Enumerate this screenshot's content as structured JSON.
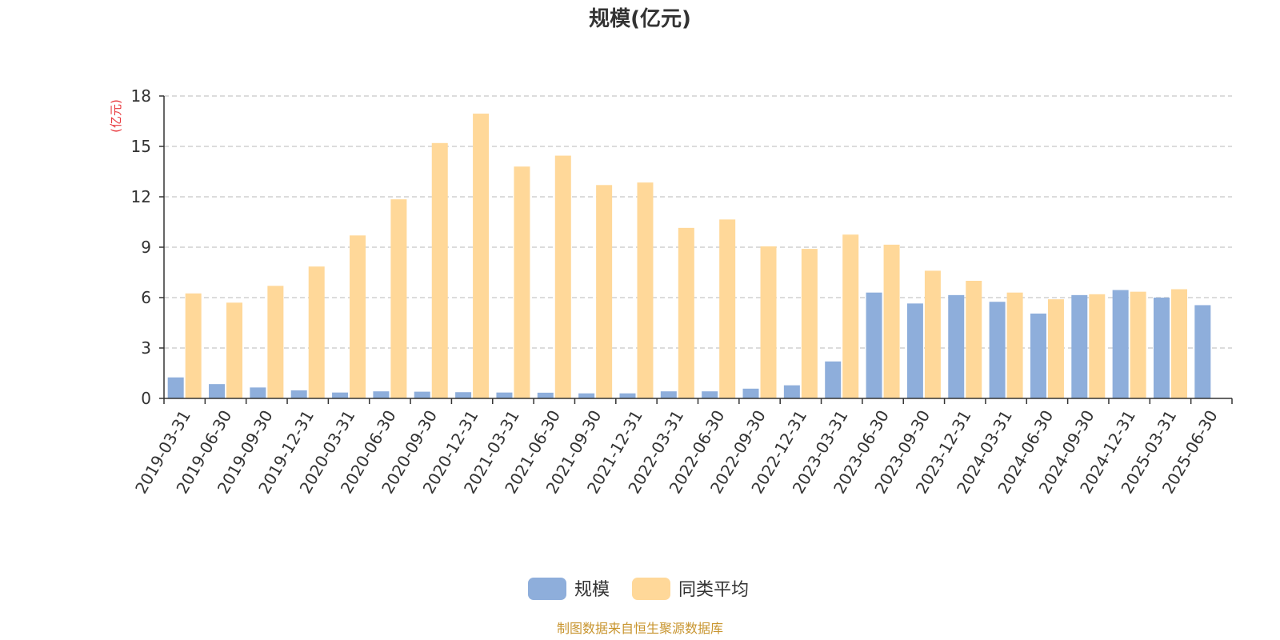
{
  "chart_data": {
    "type": "bar",
    "title": "规模(亿元)",
    "unit_label": "(亿元)",
    "categories": [
      "2019-03-31",
      "2019-06-30",
      "2019-09-30",
      "2019-12-31",
      "2020-03-31",
      "2020-06-30",
      "2020-09-30",
      "2020-12-31",
      "2021-03-31",
      "2021-06-30",
      "2021-09-30",
      "2021-12-31",
      "2022-03-31",
      "2022-06-30",
      "2022-09-30",
      "2022-12-31",
      "2023-03-31",
      "2023-06-30",
      "2023-09-30",
      "2023-12-31",
      "2024-03-31",
      "2024-06-30",
      "2024-09-30",
      "2024-12-31",
      "2025-03-31",
      "2025-06-30"
    ],
    "series": [
      {
        "name": "规模",
        "color": "#8eaedb",
        "values": [
          1.25,
          0.85,
          0.65,
          0.48,
          0.35,
          0.42,
          0.4,
          0.37,
          0.35,
          0.34,
          0.3,
          0.3,
          0.42,
          0.42,
          0.58,
          0.78,
          2.2,
          6.3,
          5.65,
          6.15,
          5.75,
          5.05,
          6.15,
          6.45,
          6.0,
          5.55
        ]
      },
      {
        "name": "同类平均",
        "color": "#ffd899",
        "values": [
          6.25,
          5.7,
          6.7,
          7.85,
          9.7,
          11.85,
          15.2,
          16.95,
          13.8,
          14.45,
          12.7,
          12.85,
          10.15,
          10.65,
          9.05,
          8.9,
          9.75,
          9.15,
          7.6,
          7.0,
          6.3,
          5.9,
          6.2,
          6.35,
          6.5,
          null
        ]
      }
    ],
    "ylim": [
      0,
      18
    ],
    "yticks": [
      0,
      3,
      6,
      9,
      12,
      15,
      18
    ],
    "grid": true,
    "legend_position": "bottom-center"
  },
  "footer": {
    "source_text": "制图数据来自恒生聚源数据库"
  }
}
